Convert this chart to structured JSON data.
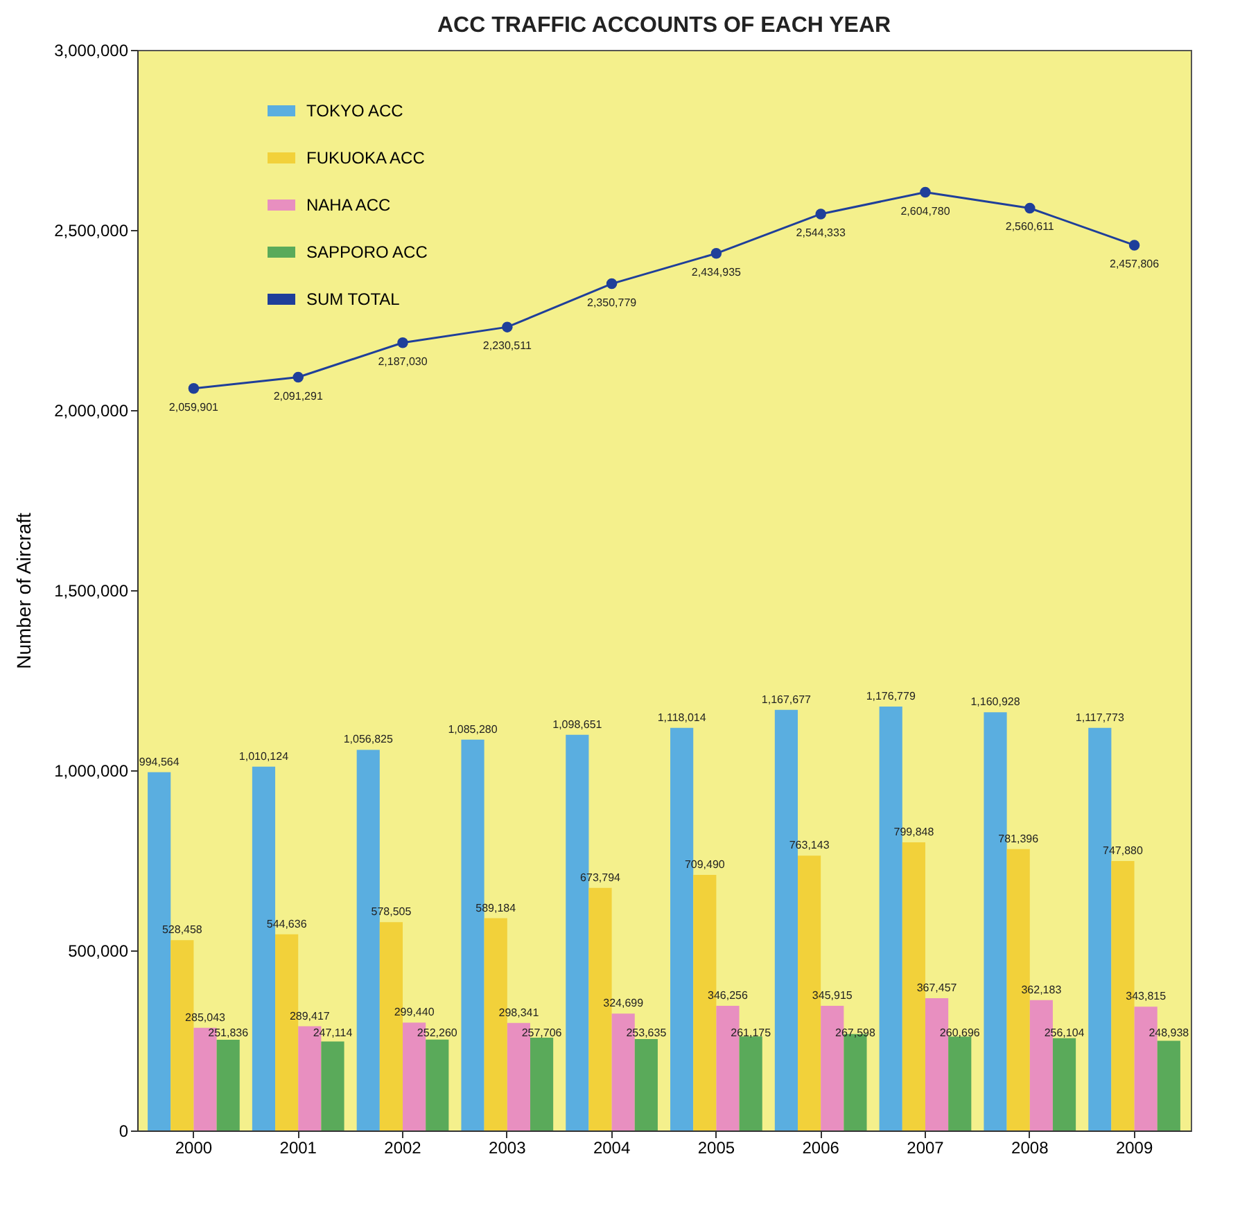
{
  "chart_data": {
    "type": "bar",
    "title": "ACC TRAFFIC ACCOUNTS OF EACH YEAR",
    "ylabel": "Number of Aircraft",
    "categories": [
      "2000",
      "2001",
      "2002",
      "2003",
      "2004",
      "2005",
      "2006",
      "2007",
      "2008",
      "2009"
    ],
    "series": [
      {
        "name": "TOKYO ACC",
        "color": "#5aaee0",
        "values": [
          994564,
          1010124,
          1056825,
          1085280,
          1098651,
          1118014,
          1167677,
          1176779,
          1160928,
          1117773
        ],
        "value_labels": [
          "994,564",
          "1,010,124",
          "1,056,825",
          "1,085,280",
          "1,098,651",
          "1,118,014",
          "1,167,677",
          "1,176,779",
          "1,160,928",
          "1,117,773"
        ]
      },
      {
        "name": "FUKUOKA ACC",
        "color": "#f2d13a",
        "values": [
          528458,
          544636,
          578505,
          589184,
          673794,
          709490,
          763143,
          799848,
          781396,
          747880
        ],
        "value_labels": [
          "528,458",
          "544,636",
          "578,505",
          "589,184",
          "673,794",
          "709,490",
          "763,143",
          "799,848",
          "781,396",
          "747,880"
        ]
      },
      {
        "name": "NAHA ACC",
        "color": "#e88fc0",
        "values": [
          285043,
          289417,
          299440,
          298341,
          324699,
          346256,
          345915,
          367457,
          362183,
          343815
        ],
        "value_labels": [
          "285,043",
          "289,417",
          "299,440",
          "298,341",
          "324,699",
          "346,256",
          "345,915",
          "367,457",
          "362,183",
          "343,815"
        ]
      },
      {
        "name": "SAPPORO ACC",
        "color": "#5aaa5a",
        "values": [
          251836,
          247114,
          252260,
          257706,
          253635,
          261175,
          267598,
          260696,
          256104,
          248938
        ],
        "value_labels": [
          "251,836",
          "247,114",
          "252,260",
          "257,706",
          "253,635",
          "261,175",
          "267,598",
          "260,696",
          "256,104",
          "248,938"
        ]
      },
      {
        "name": "SUM TOTAL",
        "type": "line",
        "color": "#1f3f9a",
        "marker": "circle",
        "values": [
          2059901,
          2091291,
          2187030,
          2230511,
          2350779,
          2434935,
          2544333,
          2604780,
          2560611,
          2457806
        ],
        "value_labels": [
          "2,059,901",
          "2,091,291",
          "2,187,030",
          "2,230,511",
          "2,350,779",
          "2,434,935",
          "2,544,333",
          "2,604,780",
          "2,560,611",
          "2,457,806"
        ]
      }
    ],
    "ylim": [
      0,
      3000000
    ],
    "yticks": [
      0,
      {
        "value": 500000,
        "label": "500,000"
      },
      {
        "value": 1000000,
        "label": "1,000,000"
      },
      {
        "value": 1500000,
        "label": "1,500,000"
      },
      {
        "value": 2000000,
        "label": "2,000,000"
      },
      {
        "value": 2500000,
        "label": "2,500,000"
      },
      {
        "value": 3000000,
        "label": "3,000,000"
      }
    ],
    "legend": "top left",
    "grid": false
  }
}
